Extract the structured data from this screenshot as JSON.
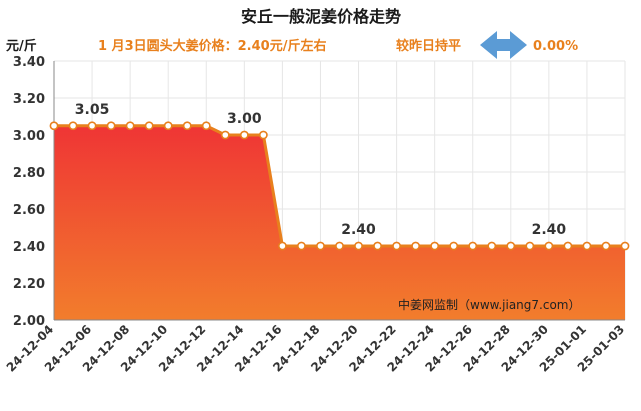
{
  "colors": {
    "line": "#e8801d",
    "marker_fill": "#ffffff",
    "area_top": "#ef3535",
    "area_bottom": "#f27d2c",
    "grid": "#e6e6e6",
    "arrow": "#5b9bd5",
    "accent_text": "#e8801d"
  },
  "header": {
    "title": "安丘一般泥姜价格走势",
    "unit": "元/斤",
    "price_note": "1 月3日圆头大姜价格：2.40元/斤左右",
    "compare_label": "较昨日持平",
    "compare_icon": "left-right-arrow-icon",
    "change_pct": "0.00%"
  },
  "source": "中姜网监制（www.jiang7.com）",
  "chart_data": {
    "type": "area",
    "title": "安丘一般泥姜价格走势",
    "ylabel": "元/斤",
    "xlabel": "",
    "ylim": [
      2.0,
      3.4
    ],
    "yticks": [
      "2.00",
      "2.20",
      "2.40",
      "2.60",
      "2.80",
      "3.00",
      "3.20",
      "3.40"
    ],
    "x": [
      "24-12-04",
      "24-12-05",
      "24-12-06",
      "24-12-07",
      "24-12-08",
      "24-12-09",
      "24-12-10",
      "24-12-11",
      "24-12-12",
      "24-12-13",
      "24-12-14",
      "24-12-15",
      "24-12-16",
      "24-12-17",
      "24-12-18",
      "24-12-19",
      "24-12-20",
      "24-12-21",
      "24-12-22",
      "24-12-23",
      "24-12-24",
      "24-12-25",
      "24-12-26",
      "24-12-27",
      "24-12-28",
      "24-12-29",
      "24-12-30",
      "24-12-31",
      "25-01-01",
      "25-01-02",
      "25-01-03"
    ],
    "xtick_labels": [
      "24-12-04",
      "24-12-06",
      "24-12-08",
      "24-12-10",
      "24-12-12",
      "24-12-14",
      "24-12-16",
      "24-12-18",
      "24-12-20",
      "24-12-22",
      "24-12-24",
      "24-12-26",
      "24-12-28",
      "24-12-30",
      "25-01-01",
      "25-01-03"
    ],
    "values": [
      3.05,
      3.05,
      3.05,
      3.05,
      3.05,
      3.05,
      3.05,
      3.05,
      3.05,
      3.0,
      3.0,
      3.0,
      2.4,
      2.4,
      2.4,
      2.4,
      2.4,
      2.4,
      2.4,
      2.4,
      2.4,
      2.4,
      2.4,
      2.4,
      2.4,
      2.4,
      2.4,
      2.4,
      2.4,
      2.4,
      2.4
    ],
    "data_labels": [
      {
        "x": "24-12-06",
        "value": "3.05"
      },
      {
        "x": "24-12-14",
        "value": "3.00"
      },
      {
        "x": "24-12-20",
        "value": "2.40"
      },
      {
        "x": "24-12-30",
        "value": "2.40"
      }
    ],
    "grid": true
  }
}
